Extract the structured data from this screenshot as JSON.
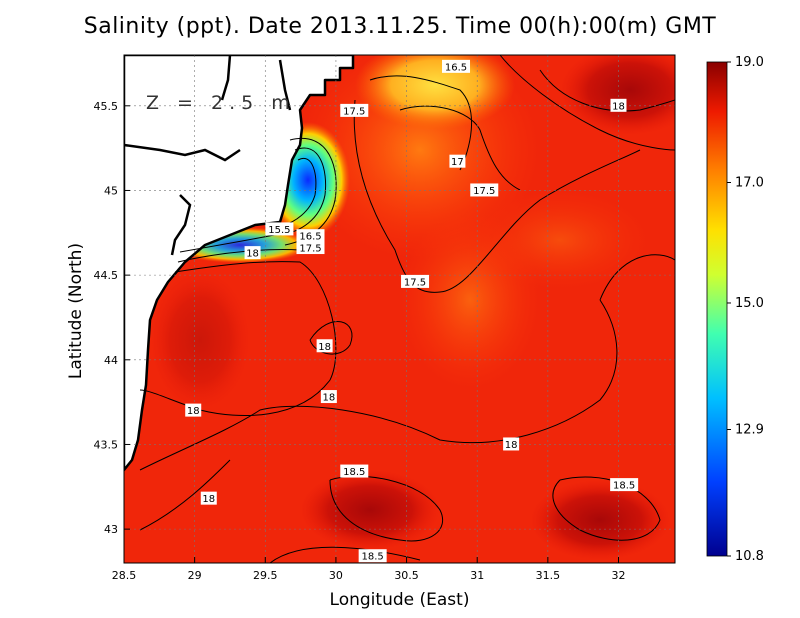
{
  "title": "Salinity (ppt). Date 2013.11.25. Time 00(h):00(m) GMT",
  "depth_label": "Z = 2.5 m",
  "chart_data": {
    "type": "heatmap",
    "xlabel": "Longitude (East)",
    "ylabel": "Latitude (North)",
    "xlim": [
      28.5,
      32.4
    ],
    "ylim": [
      42.8,
      45.8
    ],
    "x_ticks": [
      "28.5",
      "29",
      "29.5",
      "30",
      "30.5",
      "31",
      "31.5",
      "32"
    ],
    "y_ticks": [
      "43",
      "43.5",
      "44",
      "44.5",
      "45",
      "45.5"
    ],
    "grid": true,
    "colorbar": {
      "min": 10.8,
      "max": 19.0,
      "tick_labels": [
        "19.0",
        "17.0",
        "15.0",
        "12.9",
        "10.8"
      ]
    },
    "contour_labels": [
      {
        "text": "16.5",
        "lon": 30.85,
        "lat": 45.73
      },
      {
        "text": "17.5",
        "lon": 30.13,
        "lat": 45.47
      },
      {
        "text": "18",
        "lon": 32.0,
        "lat": 45.5
      },
      {
        "text": "17",
        "lon": 30.86,
        "lat": 45.17
      },
      {
        "text": "17.5",
        "lon": 31.05,
        "lat": 45.0
      },
      {
        "text": "15.5",
        "lon": 29.6,
        "lat": 44.77
      },
      {
        "text": "16.5",
        "lon": 29.82,
        "lat": 44.73
      },
      {
        "text": "17.5",
        "lon": 29.82,
        "lat": 44.66
      },
      {
        "text": "18",
        "lon": 29.41,
        "lat": 44.63
      },
      {
        "text": "17.5",
        "lon": 30.56,
        "lat": 44.46
      },
      {
        "text": "18",
        "lon": 29.92,
        "lat": 44.08
      },
      {
        "text": "18",
        "lon": 29.95,
        "lat": 43.78
      },
      {
        "text": "18",
        "lon": 28.99,
        "lat": 43.7
      },
      {
        "text": "18",
        "lon": 31.24,
        "lat": 43.5
      },
      {
        "text": "18.5",
        "lon": 30.13,
        "lat": 43.34
      },
      {
        "text": "18.5",
        "lon": 32.04,
        "lat": 43.26
      },
      {
        "text": "18",
        "lon": 29.1,
        "lat": 43.18
      },
      {
        "text": "18.5",
        "lon": 30.26,
        "lat": 42.84
      }
    ]
  }
}
